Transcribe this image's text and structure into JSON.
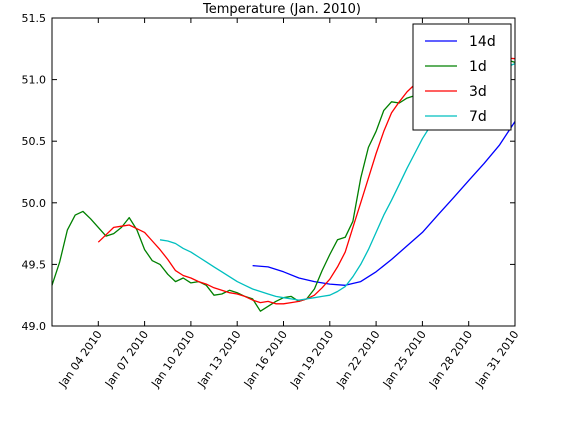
{
  "chart_data": {
    "type": "line",
    "title": "Temperature (Jan. 2010)",
    "xlabel": "",
    "ylabel": "",
    "x_range": [
      "2010-01-01",
      "2010-01-31"
    ],
    "ylim": [
      49.0,
      51.5
    ],
    "y_ticks": [
      49.0,
      49.5,
      50.0,
      50.5,
      51.0,
      51.5
    ],
    "y_tick_labels": [
      "49.0",
      "49.5",
      "50.0",
      "50.5",
      "51.0",
      "51.5"
    ],
    "x_ticks": [
      "2010-01-04",
      "2010-01-07",
      "2010-01-10",
      "2010-01-13",
      "2010-01-16",
      "2010-01-19",
      "2010-01-22",
      "2010-01-25",
      "2010-01-28",
      "2010-01-31"
    ],
    "x_tick_labels": [
      "Jan 04 2010",
      "Jan 07 2010",
      "Jan 10 2010",
      "Jan 13 2010",
      "Jan 16 2010",
      "Jan 19 2010",
      "Jan 22 2010",
      "Jan 25 2010",
      "Jan 28 2010",
      "Jan 31 2010"
    ],
    "grid": false,
    "legend_position": "top-right",
    "series": [
      {
        "name": "14d",
        "color": "#0000ff",
        "points": [
          [
            "2010-01-14",
            49.49
          ],
          [
            "2010-01-15",
            49.48
          ],
          [
            "2010-01-16",
            49.44
          ],
          [
            "2010-01-17",
            49.39
          ],
          [
            "2010-01-18",
            49.36
          ],
          [
            "2010-01-19",
            49.34
          ],
          [
            "2010-01-20",
            49.33
          ],
          [
            "2010-01-21",
            49.36
          ],
          [
            "2010-01-22",
            49.44
          ],
          [
            "2010-01-23",
            49.54
          ],
          [
            "2010-01-24",
            49.65
          ],
          [
            "2010-01-25",
            49.76
          ],
          [
            "2010-01-26",
            49.9
          ],
          [
            "2010-01-27",
            50.04
          ],
          [
            "2010-01-28",
            50.18
          ],
          [
            "2010-01-29",
            50.32
          ],
          [
            "2010-01-30",
            50.47
          ],
          [
            "2010-01-31",
            50.66
          ]
        ]
      },
      {
        "name": "1d",
        "color": "#008000",
        "points": [
          [
            "2010-01-01",
            49.33
          ],
          [
            "2010-01-01 12:00",
            49.52
          ],
          [
            "2010-01-02",
            49.78
          ],
          [
            "2010-01-02 12:00",
            49.9
          ],
          [
            "2010-01-03",
            49.93
          ],
          [
            "2010-01-03 12:00",
            49.87
          ],
          [
            "2010-01-04",
            49.8
          ],
          [
            "2010-01-04 12:00",
            49.73
          ],
          [
            "2010-01-05",
            49.75
          ],
          [
            "2010-01-05 12:00",
            49.8
          ],
          [
            "2010-01-06",
            49.88
          ],
          [
            "2010-01-06 12:00",
            49.78
          ],
          [
            "2010-01-07",
            49.62
          ],
          [
            "2010-01-07 12:00",
            49.53
          ],
          [
            "2010-01-08",
            49.5
          ],
          [
            "2010-01-08 12:00",
            49.42
          ],
          [
            "2010-01-09",
            49.36
          ],
          [
            "2010-01-09 12:00",
            49.39
          ],
          [
            "2010-01-10",
            49.35
          ],
          [
            "2010-01-10 12:00",
            49.36
          ],
          [
            "2010-01-11",
            49.33
          ],
          [
            "2010-01-11 12:00",
            49.25
          ],
          [
            "2010-01-12",
            49.26
          ],
          [
            "2010-01-12 12:00",
            49.29
          ],
          [
            "2010-01-13",
            49.27
          ],
          [
            "2010-01-13 12:00",
            49.24
          ],
          [
            "2010-01-14",
            49.22
          ],
          [
            "2010-01-14 12:00",
            49.12
          ],
          [
            "2010-01-15",
            49.16
          ],
          [
            "2010-01-15 12:00",
            49.2
          ],
          [
            "2010-01-16",
            49.23
          ],
          [
            "2010-01-16 12:00",
            49.24
          ],
          [
            "2010-01-17",
            49.2
          ],
          [
            "2010-01-17 12:00",
            49.22
          ],
          [
            "2010-01-18",
            49.3
          ],
          [
            "2010-01-18 12:00",
            49.45
          ],
          [
            "2010-01-19",
            49.58
          ],
          [
            "2010-01-19 12:00",
            49.7
          ],
          [
            "2010-01-20",
            49.72
          ],
          [
            "2010-01-20 12:00",
            49.85
          ],
          [
            "2010-01-21",
            50.2
          ],
          [
            "2010-01-21 12:00",
            50.45
          ],
          [
            "2010-01-22",
            50.58
          ],
          [
            "2010-01-22 12:00",
            50.75
          ],
          [
            "2010-01-23",
            50.82
          ],
          [
            "2010-01-23 12:00",
            50.81
          ],
          [
            "2010-01-24",
            50.85
          ],
          [
            "2010-01-24 12:00",
            50.87
          ],
          [
            "2010-01-25",
            50.92
          ],
          [
            "2010-01-25 12:00",
            51.0
          ],
          [
            "2010-01-26",
            51.08
          ],
          [
            "2010-01-27",
            51.12
          ],
          [
            "2010-01-28",
            51.16
          ],
          [
            "2010-01-29",
            51.18
          ],
          [
            "2010-01-30",
            51.18
          ],
          [
            "2010-01-31",
            51.14
          ]
        ]
      },
      {
        "name": "3d",
        "color": "#ff0000",
        "points": [
          [
            "2010-01-04",
            49.68
          ],
          [
            "2010-01-04 12:00",
            49.74
          ],
          [
            "2010-01-05",
            49.8
          ],
          [
            "2010-01-05 12:00",
            49.81
          ],
          [
            "2010-01-06",
            49.82
          ],
          [
            "2010-01-06 12:00",
            49.79
          ],
          [
            "2010-01-07",
            49.76
          ],
          [
            "2010-01-07 12:00",
            49.69
          ],
          [
            "2010-01-08",
            49.62
          ],
          [
            "2010-01-08 12:00",
            49.54
          ],
          [
            "2010-01-09",
            49.45
          ],
          [
            "2010-01-09 12:00",
            49.41
          ],
          [
            "2010-01-10",
            49.39
          ],
          [
            "2010-01-10 12:00",
            49.36
          ],
          [
            "2010-01-11",
            49.34
          ],
          [
            "2010-01-11 12:00",
            49.31
          ],
          [
            "2010-01-12",
            49.29
          ],
          [
            "2010-01-12 12:00",
            49.27
          ],
          [
            "2010-01-13",
            49.26
          ],
          [
            "2010-01-13 12:00",
            49.24
          ],
          [
            "2010-01-14",
            49.21
          ],
          [
            "2010-01-14 12:00",
            49.19
          ],
          [
            "2010-01-15",
            49.2
          ],
          [
            "2010-01-15 12:00",
            49.18
          ],
          [
            "2010-01-16",
            49.18
          ],
          [
            "2010-01-16 12:00",
            49.19
          ],
          [
            "2010-01-17",
            49.2
          ],
          [
            "2010-01-17 12:00",
            49.22
          ],
          [
            "2010-01-18",
            49.25
          ],
          [
            "2010-01-18 12:00",
            49.31
          ],
          [
            "2010-01-19",
            49.38
          ],
          [
            "2010-01-19 12:00",
            49.48
          ],
          [
            "2010-01-20",
            49.6
          ],
          [
            "2010-01-20 12:00",
            49.8
          ],
          [
            "2010-01-21",
            50.0
          ],
          [
            "2010-01-21 12:00",
            50.2
          ],
          [
            "2010-01-22",
            50.4
          ],
          [
            "2010-01-22 12:00",
            50.58
          ],
          [
            "2010-01-23",
            50.73
          ],
          [
            "2010-01-23 12:00",
            50.82
          ],
          [
            "2010-01-24",
            50.9
          ],
          [
            "2010-01-25",
            51.02
          ],
          [
            "2010-01-26",
            51.1
          ],
          [
            "2010-01-27",
            51.13
          ],
          [
            "2010-01-28",
            51.15
          ],
          [
            "2010-01-29",
            51.17
          ],
          [
            "2010-01-30",
            51.18
          ],
          [
            "2010-01-31",
            51.17
          ]
        ]
      },
      {
        "name": "7d",
        "color": "#00bfbf",
        "points": [
          [
            "2010-01-08",
            49.7
          ],
          [
            "2010-01-08 12:00",
            49.69
          ],
          [
            "2010-01-09",
            49.67
          ],
          [
            "2010-01-09 12:00",
            49.63
          ],
          [
            "2010-01-10",
            49.6
          ],
          [
            "2010-01-10 12:00",
            49.56
          ],
          [
            "2010-01-11",
            49.52
          ],
          [
            "2010-01-11 12:00",
            49.48
          ],
          [
            "2010-01-12",
            49.44
          ],
          [
            "2010-01-12 12:00",
            49.4
          ],
          [
            "2010-01-13",
            49.36
          ],
          [
            "2010-01-13 12:00",
            49.33
          ],
          [
            "2010-01-14",
            49.3
          ],
          [
            "2010-01-14 12:00",
            49.28
          ],
          [
            "2010-01-15",
            49.26
          ],
          [
            "2010-01-15 12:00",
            49.24
          ],
          [
            "2010-01-16",
            49.23
          ],
          [
            "2010-01-16 12:00",
            49.22
          ],
          [
            "2010-01-17",
            49.21
          ],
          [
            "2010-01-17 12:00",
            49.22
          ],
          [
            "2010-01-18",
            49.23
          ],
          [
            "2010-01-18 12:00",
            49.24
          ],
          [
            "2010-01-19",
            49.25
          ],
          [
            "2010-01-19 12:00",
            49.28
          ],
          [
            "2010-01-20",
            49.32
          ],
          [
            "2010-01-20 12:00",
            49.4
          ],
          [
            "2010-01-21",
            49.5
          ],
          [
            "2010-01-21 12:00",
            49.62
          ],
          [
            "2010-01-22",
            49.76
          ],
          [
            "2010-01-22 12:00",
            49.9
          ],
          [
            "2010-01-23",
            50.02
          ],
          [
            "2010-01-23 12:00",
            50.15
          ],
          [
            "2010-01-24",
            50.28
          ],
          [
            "2010-01-24 12:00",
            50.4
          ],
          [
            "2010-01-25",
            50.52
          ],
          [
            "2010-01-25 12:00",
            50.62
          ],
          [
            "2010-01-26",
            50.72
          ],
          [
            "2010-01-26 12:00",
            50.8
          ],
          [
            "2010-01-27",
            50.88
          ],
          [
            "2010-01-28",
            50.98
          ],
          [
            "2010-01-29",
            51.04
          ],
          [
            "2010-01-30",
            51.08
          ],
          [
            "2010-01-31",
            51.13
          ]
        ]
      }
    ]
  }
}
